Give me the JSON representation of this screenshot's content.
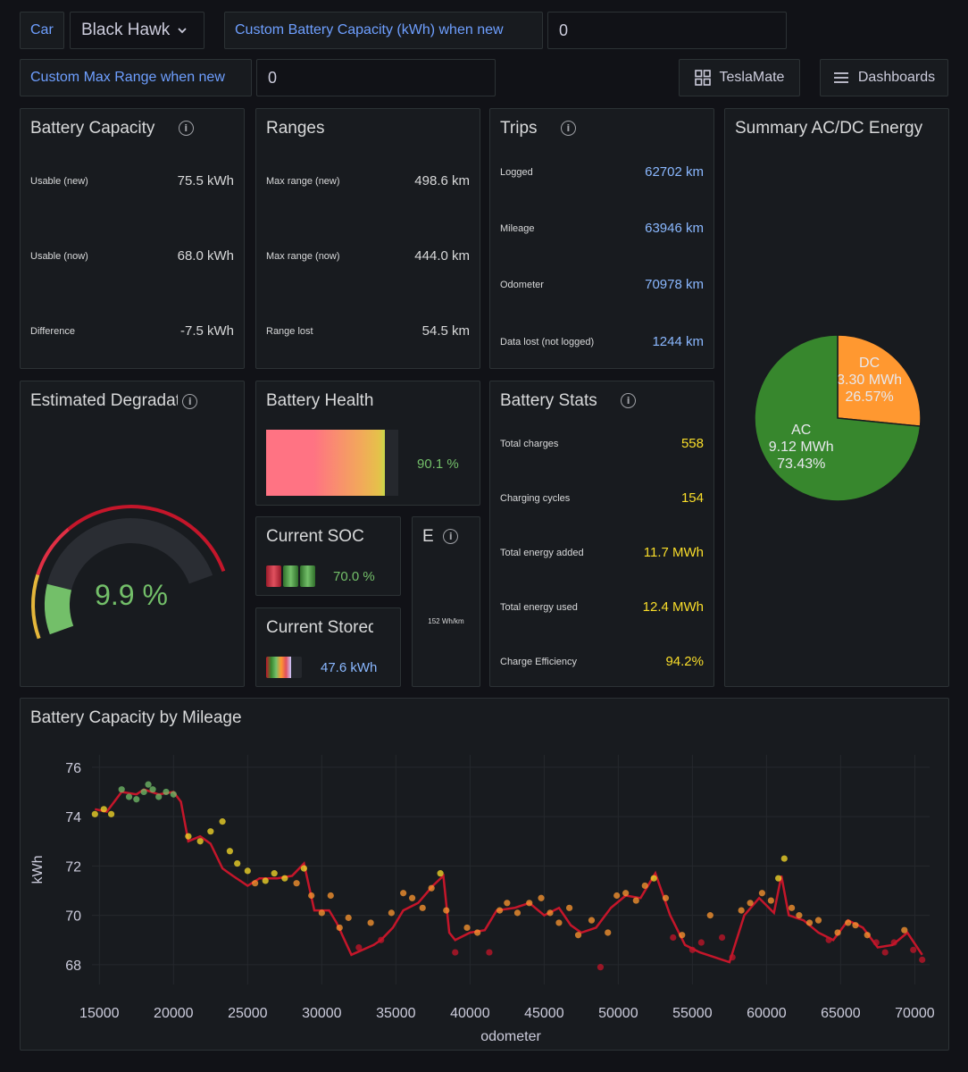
{
  "variables": {
    "car_label": "Car",
    "car_value": "Black Hawk",
    "custom_battery_label": "Custom Battery Capacity (kWh) when new",
    "custom_battery_value": "0",
    "custom_range_label": "Custom Max Range when new",
    "custom_range_value": "0"
  },
  "nav": {
    "teslamate_label": "TeslaMate",
    "dashboards_label": "Dashboards"
  },
  "battery_capacity": {
    "title": "Battery Capacity",
    "rows": [
      {
        "label": "Usable (new)",
        "value": "75.5 kWh"
      },
      {
        "label": "Usable (now)",
        "value": "68.0 kWh"
      },
      {
        "label": "Difference",
        "value": "-7.5 kWh"
      }
    ]
  },
  "ranges": {
    "title": "Ranges",
    "rows": [
      {
        "label": "Max range (new)",
        "value": "498.6 km"
      },
      {
        "label": "Max range (now)",
        "value": "444.0 km"
      },
      {
        "label": "Range lost",
        "value": "54.5 km"
      }
    ]
  },
  "trips": {
    "title": "Trips",
    "rows": [
      {
        "label": "Logged",
        "value": "62702 km"
      },
      {
        "label": "Mileage",
        "value": "63946 km"
      },
      {
        "label": "Odometer",
        "value": "70978 km"
      },
      {
        "label": "Data lost (not logged)",
        "value": "1244 km"
      }
    ]
  },
  "summary": {
    "title": "Summary AC/DC Energy",
    "slices": [
      {
        "name": "DC",
        "energy": "3.30 MWh",
        "percent": "26.57%",
        "fraction": 0.2657,
        "color": "#ff9830"
      },
      {
        "name": "AC",
        "energy": "9.12 MWh",
        "percent": "73.43%",
        "fraction": 0.7343,
        "color": "#37872d"
      }
    ]
  },
  "degradation": {
    "title": "Estimated Degradation",
    "value": "9.9 %",
    "fraction": 0.099
  },
  "health": {
    "title": "Battery Health",
    "value": "90.1 %",
    "fraction": 0.901
  },
  "soc": {
    "title": "Current SOC",
    "value": "70.0 %",
    "fraction": 0.7
  },
  "efficiency": {
    "title": "E",
    "value": "152 Wh/km"
  },
  "stored": {
    "title": "Current Stored Energy",
    "value": "47.6 kWh",
    "fraction": 0.7
  },
  "battery_stats": {
    "title": "Battery Stats",
    "rows": [
      {
        "label": "Total charges",
        "value": "558"
      },
      {
        "label": "Charging cycles",
        "value": "154"
      },
      {
        "label": "Total energy added",
        "value": "11.7 MWh"
      },
      {
        "label": "Total energy used",
        "value": "12.4 MWh"
      },
      {
        "label": "Charge Efficiency",
        "value": "94.2%"
      }
    ]
  },
  "capacity_chart": {
    "title": "Battery Capacity by Mileage",
    "xlabel": "odometer",
    "ylabel": "kWh",
    "xticks": [
      "15000",
      "20000",
      "25000",
      "30000",
      "35000",
      "40000",
      "45000",
      "50000",
      "55000",
      "60000",
      "65000",
      "70000"
    ],
    "yticks": [
      "76",
      "74",
      "72",
      "70",
      "68"
    ]
  },
  "chart_data": {
    "type": "line",
    "xlabel": "odometer",
    "ylabel": "kWh",
    "xlim": [
      14500,
      71000
    ],
    "ylim": [
      67.2,
      76.5
    ],
    "grid": true,
    "series": [
      {
        "kind": "line",
        "color": "#c4162a",
        "points": [
          [
            14700,
            74.3
          ],
          [
            15500,
            74.2
          ],
          [
            16500,
            75.0
          ],
          [
            17500,
            74.9
          ],
          [
            18000,
            75.1
          ],
          [
            19000,
            74.9
          ],
          [
            20000,
            75.0
          ],
          [
            20500,
            74.6
          ],
          [
            21000,
            73.0
          ],
          [
            21800,
            73.2
          ],
          [
            22500,
            72.9
          ],
          [
            23300,
            71.9
          ],
          [
            24000,
            71.6
          ],
          [
            25000,
            71.2
          ],
          [
            25800,
            71.5
          ],
          [
            27000,
            71.5
          ],
          [
            28000,
            71.6
          ],
          [
            28800,
            72.1
          ],
          [
            29500,
            70.2
          ],
          [
            30500,
            70.2
          ],
          [
            31000,
            69.7
          ],
          [
            32000,
            68.4
          ],
          [
            33500,
            68.8
          ],
          [
            34000,
            69.0
          ],
          [
            34800,
            69.5
          ],
          [
            35500,
            70.2
          ],
          [
            36500,
            70.5
          ],
          [
            37500,
            71.2
          ],
          [
            38200,
            71.6
          ],
          [
            38600,
            69.3
          ],
          [
            39000,
            69.0
          ],
          [
            40000,
            69.3
          ],
          [
            41000,
            69.4
          ],
          [
            41800,
            70.2
          ],
          [
            43000,
            70.3
          ],
          [
            44000,
            70.5
          ],
          [
            45000,
            70.0
          ],
          [
            46000,
            70.3
          ],
          [
            46800,
            69.6
          ],
          [
            47500,
            69.3
          ],
          [
            48500,
            69.5
          ],
          [
            49500,
            70.3
          ],
          [
            50500,
            70.8
          ],
          [
            51500,
            70.7
          ],
          [
            52500,
            71.7
          ],
          [
            53500,
            70.0
          ],
          [
            54500,
            68.8
          ],
          [
            55500,
            68.5
          ],
          [
            57500,
            68.1
          ],
          [
            58500,
            70.0
          ],
          [
            59500,
            70.7
          ],
          [
            60500,
            70.1
          ],
          [
            61000,
            71.6
          ],
          [
            61500,
            70.0
          ],
          [
            62500,
            69.8
          ],
          [
            63500,
            69.3
          ],
          [
            64500,
            69.0
          ],
          [
            65500,
            69.8
          ],
          [
            66500,
            69.5
          ],
          [
            67500,
            68.7
          ],
          [
            68500,
            68.8
          ],
          [
            69500,
            69.3
          ],
          [
            70500,
            68.4
          ]
        ]
      },
      {
        "kind": "scatter",
        "color_scale": [
          "#73bf69",
          "#fade2a",
          "#ff9830",
          "#c4162a"
        ],
        "points": [
          [
            14700,
            74.1
          ],
          [
            15300,
            74.3
          ],
          [
            15800,
            74.1
          ],
          [
            16500,
            75.1
          ],
          [
            17000,
            74.8
          ],
          [
            17500,
            74.7
          ],
          [
            18000,
            75.0
          ],
          [
            18300,
            75.3
          ],
          [
            18600,
            75.1
          ],
          [
            19000,
            74.8
          ],
          [
            19500,
            75.0
          ],
          [
            20000,
            74.9
          ],
          [
            21000,
            73.2
          ],
          [
            21800,
            73.0
          ],
          [
            22500,
            73.4
          ],
          [
            23300,
            73.8
          ],
          [
            23800,
            72.6
          ],
          [
            24300,
            72.1
          ],
          [
            25000,
            71.8
          ],
          [
            25500,
            71.3
          ],
          [
            26200,
            71.4
          ],
          [
            26800,
            71.7
          ],
          [
            27500,
            71.5
          ],
          [
            28300,
            71.3
          ],
          [
            28800,
            71.9
          ],
          [
            29300,
            70.8
          ],
          [
            30000,
            70.1
          ],
          [
            30600,
            70.8
          ],
          [
            31200,
            69.5
          ],
          [
            31800,
            69.9
          ],
          [
            32500,
            68.7
          ],
          [
            33300,
            69.7
          ],
          [
            34000,
            69.0
          ],
          [
            34700,
            70.1
          ],
          [
            35500,
            70.9
          ],
          [
            36100,
            70.7
          ],
          [
            36800,
            70.3
          ],
          [
            37400,
            71.1
          ],
          [
            38000,
            71.7
          ],
          [
            38400,
            70.2
          ],
          [
            39000,
            68.5
          ],
          [
            39800,
            69.5
          ],
          [
            40500,
            69.3
          ],
          [
            41300,
            68.5
          ],
          [
            42000,
            70.2
          ],
          [
            42500,
            70.5
          ],
          [
            43200,
            70.1
          ],
          [
            44000,
            70.5
          ],
          [
            44800,
            70.7
          ],
          [
            45400,
            70.1
          ],
          [
            46000,
            69.7
          ],
          [
            46700,
            70.3
          ],
          [
            47300,
            69.2
          ],
          [
            48200,
            69.8
          ],
          [
            48800,
            67.9
          ],
          [
            49300,
            69.3
          ],
          [
            49900,
            70.8
          ],
          [
            50500,
            70.9
          ],
          [
            51200,
            70.6
          ],
          [
            51800,
            71.2
          ],
          [
            52400,
            71.5
          ],
          [
            53200,
            70.7
          ],
          [
            53700,
            69.1
          ],
          [
            54300,
            69.2
          ],
          [
            55000,
            68.6
          ],
          [
            55600,
            68.9
          ],
          [
            56200,
            70.0
          ],
          [
            57000,
            69.1
          ],
          [
            57700,
            68.3
          ],
          [
            58300,
            70.2
          ],
          [
            58900,
            70.5
          ],
          [
            59700,
            70.9
          ],
          [
            60300,
            70.6
          ],
          [
            60800,
            71.5
          ],
          [
            61200,
            72.3
          ],
          [
            61700,
            70.3
          ],
          [
            62200,
            70.0
          ],
          [
            62900,
            69.7
          ],
          [
            63500,
            69.8
          ],
          [
            64200,
            69.0
          ],
          [
            64800,
            69.3
          ],
          [
            65500,
            69.7
          ],
          [
            66000,
            69.6
          ],
          [
            66800,
            69.2
          ],
          [
            67400,
            68.9
          ],
          [
            68000,
            68.5
          ],
          [
            68600,
            68.9
          ],
          [
            69300,
            69.4
          ],
          [
            69900,
            68.6
          ],
          [
            70500,
            68.2
          ]
        ]
      }
    ]
  }
}
